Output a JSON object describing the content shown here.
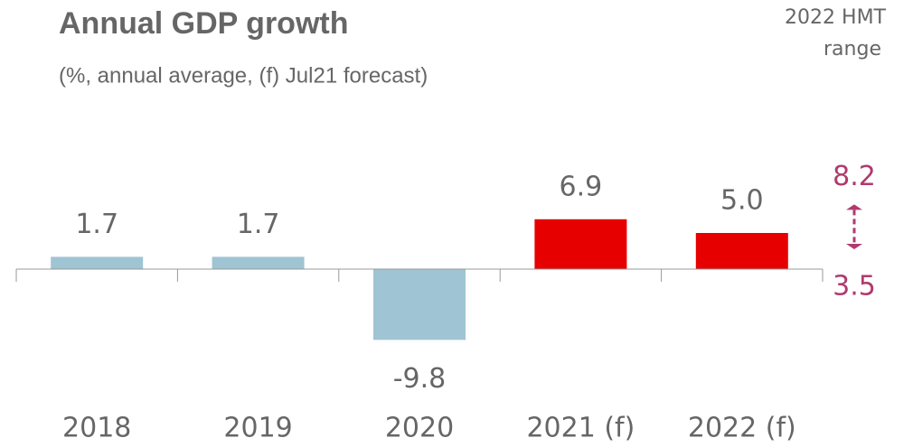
{
  "chart_data": {
    "type": "bar",
    "title": "Annual GDP growth",
    "subtitle": "(%, annual average, (f) Jul21 forecast)",
    "categories": [
      "2018",
      "2019",
      "2020",
      "2021 (f)",
      "2022 (f)"
    ],
    "values": [
      1.7,
      1.7,
      -9.8,
      6.9,
      5.0
    ],
    "value_labels": [
      "1.7",
      "1.7",
      "-9.8",
      "6.9",
      "5.0"
    ],
    "colors": [
      "#9fc4d3",
      "#9fc4d3",
      "#9fc4d3",
      "#e60000",
      "#e60000"
    ],
    "range": {
      "title_lines": [
        "2022 HMT",
        "range"
      ],
      "low": 3.5,
      "high": 8.2,
      "low_label": "3.5",
      "high_label": "8.2",
      "color": "#b03a6e"
    }
  }
}
